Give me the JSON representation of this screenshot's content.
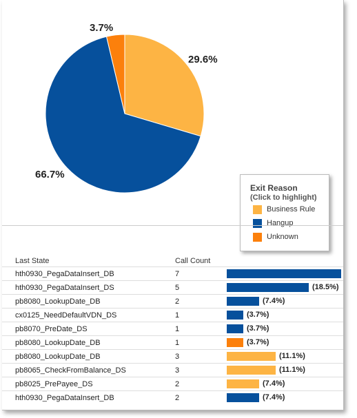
{
  "chart_data": [
    {
      "type": "pie",
      "slices": [
        {
          "label": "Business Rule",
          "value": 29.6,
          "display": "29.6%",
          "color": "#FDB444"
        },
        {
          "label": "Hangup",
          "value": 66.7,
          "display": "66.7%",
          "color": "#06509C"
        },
        {
          "label": "Unknown",
          "value": 3.7,
          "display": "3.7%",
          "color": "#FC800C"
        }
      ],
      "legend": {
        "title": "Exit Reason",
        "subtitle": "(Click to highlight)",
        "placement": "bottom-right"
      }
    },
    {
      "type": "table",
      "columns": [
        "Last State",
        "Call Count"
      ],
      "rows": [
        {
          "state": "hth0930_PegaDataInsert_DB",
          "count": "7",
          "value": 7,
          "label": "",
          "color": "#06509C"
        },
        {
          "state": "hth0930_PegaDataInsert_DS",
          "count": "5",
          "value": 5,
          "label": "(18.5%)",
          "color": "#06509C"
        },
        {
          "state": "pb8080_LookupDate_DB",
          "count": "2",
          "value": 2,
          "label": "(7.4%)",
          "color": "#06509C"
        },
        {
          "state": "cx0125_NeedDefaultVDN_DS",
          "count": "1",
          "value": 1,
          "label": "(3.7%)",
          "color": "#06509C"
        },
        {
          "state": "pb8070_PreDate_DS",
          "count": "1",
          "value": 1,
          "label": "(3.7%)",
          "color": "#06509C"
        },
        {
          "state": "pb8080_LookupDate_DB",
          "count": "1",
          "value": 1,
          "label": "(3.7%)",
          "color": "#FC800C"
        },
        {
          "state": "pb8080_LookupDate_DB",
          "count": "3",
          "value": 3,
          "label": "(11.1%)",
          "color": "#FDB444"
        },
        {
          "state": "pb8065_CheckFromBalance_DS",
          "count": "3",
          "value": 3,
          "label": "(11.1%)",
          "color": "#FDB444"
        },
        {
          "state": "pb8025_PrePayee_DS",
          "count": "2",
          "value": 2,
          "label": "(7.4%)",
          "color": "#FDB444"
        },
        {
          "state": "hth0930_PegaDataInsert_DB",
          "count": "2",
          "value": 2,
          "label": "(7.4%)",
          "color": "#06509C"
        }
      ]
    }
  ]
}
